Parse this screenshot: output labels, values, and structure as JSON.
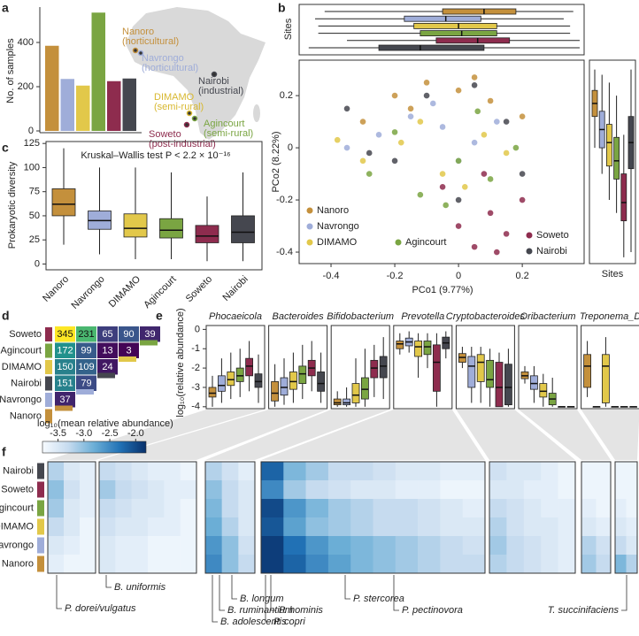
{
  "panel_labels": [
    "a",
    "b",
    "c",
    "d",
    "e",
    "f"
  ],
  "chart_data": [
    {
      "type": "bar",
      "ylabel": "No. of samples",
      "categories": [
        "Nanoro",
        "Navrongo",
        "DIMAMO",
        "Agincourt",
        "Soweto",
        "Nairobi"
      ],
      "values": [
        385,
        235,
        205,
        535,
        225,
        237
      ],
      "colors": [
        "#c4903c",
        "#9fadd9",
        "#e2c84a",
        "#7aa542",
        "#8e2c4e",
        "#45474f"
      ],
      "ylim": [
        0,
        560
      ],
      "yticks": [
        0,
        200,
        400
      ],
      "annotations": [
        {
          "name": "Nanoro",
          "note": "(horticultural)",
          "color": "#c4903c"
        },
        {
          "name": "Navrongo",
          "note": "(horticultural)",
          "color": "#9fadd9"
        },
        {
          "name": "Nairobi",
          "note": "(industrial)",
          "color": "#45474f"
        },
        {
          "name": "DIMAMO",
          "note": "(semi-rural)",
          "color": "#d8b830"
        },
        {
          "name": "Agincourt",
          "note": "(semi-rural)",
          "color": "#7aa542"
        },
        {
          "name": "Soweto",
          "note": "(post-industrial)",
          "color": "#8e2c4e"
        }
      ]
    },
    {
      "type": "scatter",
      "xlabel": "PCo1 (9.77%)",
      "ylabel": "PCo2 (8.22%)",
      "marginal_label": "Sites",
      "xlim": [
        -0.5,
        0.394
      ],
      "ylim": [
        -0.444,
        0.336
      ],
      "xticks": [
        -0.4,
        -0.2,
        0,
        0.2
      ],
      "yticks": [
        -0.4,
        -0.2,
        0,
        0.2
      ],
      "series": [
        {
          "name": "Nanoro",
          "color": "#c4903c",
          "x": [
            -0.3,
            -0.2,
            -0.1,
            0,
            0.1,
            0.2,
            0.05,
            -0.15
          ],
          "y": [
            0.1,
            0.2,
            0.25,
            0.22,
            0.18,
            0.12,
            0.27,
            0.15
          ]
        },
        {
          "name": "Navrongo",
          "color": "#9fadd9",
          "x": [
            -0.25,
            -0.15,
            -0.05,
            0.05,
            -0.35,
            0.12,
            -0.08,
            0.0
          ],
          "y": [
            0.05,
            0.12,
            0.08,
            0.02,
            0.0,
            0.1,
            0.17,
            -0.05
          ]
        },
        {
          "name": "DIMAMO",
          "color": "#e2c84a",
          "x": [
            -0.3,
            -0.18,
            -0.05,
            0.08,
            0.15,
            -0.38,
            0.02,
            -0.12
          ],
          "y": [
            -0.05,
            0.02,
            -0.1,
            0.05,
            -0.02,
            0.03,
            -0.15,
            0.1
          ]
        },
        {
          "name": "Agincourt",
          "color": "#7aa542",
          "x": [
            -0.28,
            -0.12,
            0.0,
            0.1,
            0.18,
            -0.2,
            -0.04,
            0.06
          ],
          "y": [
            -0.1,
            -0.18,
            -0.05,
            -0.12,
            0.0,
            0.06,
            -0.22,
            0.14
          ]
        },
        {
          "name": "Soweto",
          "color": "#8e2c4e",
          "x": [
            0.0,
            0.05,
            0.1,
            0.15,
            0.2,
            -0.05,
            0.08,
            0.12
          ],
          "y": [
            -0.3,
            -0.38,
            -0.25,
            -0.33,
            -0.2,
            -0.15,
            -0.1,
            -0.4
          ]
        },
        {
          "name": "Nairobi",
          "color": "#45474f",
          "x": [
            -0.35,
            -0.2,
            -0.1,
            0.0,
            0.15,
            0.2,
            -0.28,
            0.05
          ],
          "y": [
            0.15,
            -0.05,
            0.2,
            -0.2,
            0.1,
            -0.1,
            -0.02,
            0.24
          ]
        }
      ],
      "top_boxes": [
        [
          -0.42,
          -0.05,
          0.08,
          0.18,
          0.36
        ],
        [
          -0.45,
          -0.17,
          -0.04,
          0.07,
          0.33
        ],
        [
          -0.44,
          -0.14,
          0.0,
          0.12,
          0.35
        ],
        [
          -0.44,
          -0.12,
          0.01,
          0.12,
          0.35
        ],
        [
          -0.35,
          -0.07,
          0.06,
          0.16,
          0.38
        ],
        [
          -0.47,
          -0.25,
          -0.12,
          0.08,
          0.38
        ]
      ],
      "right_boxes": [
        [
          0,
          0.12,
          0.17,
          0.22,
          0.3
        ],
        [
          -0.1,
          0.0,
          0.07,
          0.14,
          0.28
        ],
        [
          -0.2,
          -0.07,
          0.02,
          0.09,
          0.25
        ],
        [
          -0.25,
          -0.12,
          -0.05,
          0.04,
          0.2
        ],
        [
          -0.42,
          -0.28,
          -0.21,
          -0.1,
          0.05
        ],
        [
          -0.4,
          -0.08,
          0.02,
          0.12,
          0.3
        ]
      ]
    },
    {
      "type": "box",
      "ylabel": "Prokaryotic diversity",
      "annotation": "Kruskal–Wallis test P < 2.2 × 10⁻¹⁶",
      "categories": [
        "Nanoro",
        "Navrongo",
        "DIMAMO",
        "Agincourt",
        "Soweto",
        "Nairobi"
      ],
      "colors": [
        "#c4903c",
        "#9fadd9",
        "#e2c84a",
        "#7aa542",
        "#8e2c4e",
        "#45474f"
      ],
      "boxes": [
        [
          20,
          50,
          62,
          78,
          120
        ],
        [
          10,
          36,
          45,
          55,
          100
        ],
        [
          5,
          28,
          37,
          52,
          100
        ],
        [
          5,
          27,
          35,
          47,
          95
        ],
        [
          3,
          22,
          29,
          40,
          70
        ],
        [
          3,
          22,
          33,
          50,
          95
        ]
      ],
      "ylim": [
        -6,
        127
      ],
      "yticks": [
        0,
        25,
        50,
        75,
        100,
        125
      ]
    },
    {
      "type": "matrix",
      "rows": [
        "Soweto",
        "Agincourt",
        "DIMAMO",
        "Nairobi",
        "Navrongo",
        "Nanoro"
      ],
      "row_colors": [
        "#8e2c4e",
        "#7aa542",
        "#e2c84a",
        "#45474f",
        "#9fadd9",
        "#c4903c"
      ],
      "values": [
        [
          345,
          231,
          65,
          90,
          39
        ],
        [
          172,
          99,
          13,
          3
        ],
        [
          150,
          109,
          24
        ],
        [
          151,
          79
        ],
        [
          37
        ],
        []
      ],
      "colorscale": [
        "#440154",
        "#3b528b",
        "#21918c",
        "#5ec962",
        "#fde725"
      ]
    },
    {
      "type": "box-grid",
      "ylabel": "log₁₀(relative abundance)",
      "colors": [
        "#c4903c",
        "#9fadd9",
        "#e2c84a",
        "#7aa542",
        "#8e2c4e",
        "#45474f"
      ],
      "ylim": [
        -4.1,
        0.2
      ],
      "yticks": [
        0,
        -1,
        -2,
        -3,
        -4
      ],
      "panels": [
        {
          "title": "Phocaeicola",
          "boxes": [
            [
              -4,
              -3.5,
              -3.3,
              -3.0,
              -2.4
            ],
            [
              -3.8,
              -3.2,
              -2.9,
              -2.4,
              -1.5
            ],
            [
              -3.6,
              -2.9,
              -2.6,
              -2.2,
              -1.2
            ],
            [
              -3.5,
              -2.7,
              -2.4,
              -2.0,
              -1.0
            ],
            [
              -3.2,
              -2.4,
              -1.9,
              -1.5,
              -0.6
            ],
            [
              -3.8,
              -3.0,
              -2.7,
              -2.3,
              -1.3
            ]
          ]
        },
        {
          "title": "Bacteroides",
          "boxes": [
            [
              -4,
              -3.7,
              -3.3,
              -2.7,
              -1.8
            ],
            [
              -3.9,
              -3.4,
              -3.0,
              -2.5,
              -1.5
            ],
            [
              -3.8,
              -3.1,
              -2.7,
              -2.2,
              -1.2
            ],
            [
              -3.6,
              -2.8,
              -2.3,
              -1.9,
              -0.8
            ],
            [
              -3.2,
              -2.4,
              -2.0,
              -1.6,
              -0.6
            ],
            [
              -3.8,
              -3.2,
              -2.8,
              -2.2,
              -1.2
            ]
          ]
        },
        {
          "title": "Bifidobacterium",
          "boxes": [
            [
              -4,
              -3.9,
              -3.8,
              -3.6,
              -3.2
            ],
            [
              -4,
              -3.9,
              -3.8,
              -3.6,
              -3.0
            ],
            [
              -4,
              -3.8,
              -3.4,
              -2.8,
              -1.5
            ],
            [
              -4,
              -3.6,
              -3.1,
              -2.5,
              -1.0
            ],
            [
              -3.5,
              -2.5,
              -2.0,
              -1.6,
              -0.8
            ],
            [
              -3.6,
              -2.5,
              -1.9,
              -1.4,
              -0.4
            ]
          ]
        },
        {
          "title": "Prevotella",
          "boxes": [
            [
              -1.3,
              -1.0,
              -0.75,
              -0.6,
              -0.2
            ],
            [
              -1.2,
              -0.85,
              -0.65,
              -0.45,
              -0.1
            ],
            [
              -2.5,
              -1.4,
              -0.9,
              -0.6,
              -0.2
            ],
            [
              -2.0,
              -1.3,
              -0.9,
              -0.6,
              -0.2
            ],
            [
              -4,
              -3.2,
              -1.7,
              -0.8,
              -0.2
            ],
            [
              -1.5,
              -1.0,
              -0.7,
              -0.4,
              -0.1
            ]
          ]
        },
        {
          "title": "Cryptobacteroides",
          "boxes": [
            [
              -2.0,
              -1.7,
              -1.45,
              -1.25,
              -0.9
            ],
            [
              -3.8,
              -3.0,
              -1.9,
              -1.4,
              -0.9
            ],
            [
              -3.8,
              -2.7,
              -1.7,
              -1.3,
              -0.9
            ],
            [
              -4,
              -3.0,
              -2.6,
              -1.6,
              -1.0
            ],
            [
              -4,
              -4,
              -3.0,
              -1.7,
              -1.2
            ],
            [
              -4,
              -3.9,
              -3.0,
              -1.8,
              -1.0
            ]
          ]
        },
        {
          "title": "Oribacterium",
          "boxes": [
            [
              -2.8,
              -2.55,
              -2.4,
              -2.2,
              -1.9
            ],
            [
              -3.8,
              -3.1,
              -2.8,
              -2.4,
              -1.9
            ],
            [
              -4,
              -3.5,
              -3.2,
              -2.8,
              -2.3
            ],
            [
              -4,
              -3.9,
              -3.6,
              -3.3,
              -2.5
            ],
            [
              -4,
              -4,
              -4,
              -4,
              -4
            ],
            [
              -4,
              -4,
              -4,
              -4,
              -4
            ]
          ]
        },
        {
          "title": "Treponema_D",
          "boxes": [
            [
              -3.5,
              -3.0,
              -1.9,
              -1.3,
              -0.6
            ],
            [
              -4,
              -4,
              -4,
              -4,
              -4
            ],
            [
              -4,
              -3.8,
              -1.9,
              -1.3,
              -0.4
            ],
            [
              -4,
              -4,
              -4,
              -4,
              -4
            ],
            [
              -4,
              -4,
              -4,
              -4,
              -4
            ],
            [
              -4,
              -4,
              -4,
              -4,
              -4
            ]
          ]
        }
      ]
    },
    {
      "type": "heatmap",
      "rows": [
        "Nairobi",
        "Soweto",
        "Agincourt",
        "DIMAMO",
        "Navrongo",
        "Nanoro"
      ],
      "row_colors": [
        "#45474f",
        "#8e2c4e",
        "#7aa542",
        "#e2c84a",
        "#9fadd9",
        "#c4903c"
      ],
      "colorbar_label": "log₁₀(mean relative abundance)",
      "clim": [
        -3.8,
        -1.8
      ],
      "cticks": [
        -3.5,
        {
          "value": -3,
          "label": "-3.0"
        },
        -2.5,
        {
          "value": -2,
          "label": "-2.0"
        }
      ],
      "colorscale": [
        "#f7fbff",
        "#c6dbef",
        "#6baed6",
        "#2171b5",
        "#08306b"
      ],
      "blocks": [
        [
          [
            -3.2,
            -3.5,
            -3.6
          ],
          [
            -3.0,
            -3.4,
            -3.6
          ],
          [
            -3.1,
            -3.5,
            -3.6
          ],
          [
            -3.3,
            -3.5,
            -3.7
          ],
          [
            -3.5,
            -3.6,
            -3.7
          ],
          [
            -3.6,
            -3.7,
            -3.7
          ]
        ],
        [
          [
            -3.3,
            -3.4,
            -3.5,
            -3.6,
            -3.6,
            -3.7
          ],
          [
            -3.1,
            -3.3,
            -3.4,
            -3.5,
            -3.6,
            -3.6
          ],
          [
            -3.3,
            -3.4,
            -3.5,
            -3.5,
            -3.6,
            -3.7
          ],
          [
            -3.4,
            -3.5,
            -3.5,
            -3.6,
            -3.6,
            -3.7
          ],
          [
            -3.5,
            -3.6,
            -3.6,
            -3.7,
            -3.7,
            -3.7
          ],
          [
            -3.5,
            -3.6,
            -3.6,
            -3.7,
            -3.7,
            -3.7
          ]
        ],
        [
          [
            -3.2,
            -3.4,
            -3.6
          ],
          [
            -3.0,
            -3.3,
            -3.5
          ],
          [
            -2.9,
            -3.3,
            -3.5
          ],
          [
            -2.8,
            -3.2,
            -3.5
          ],
          [
            -2.6,
            -3.0,
            -3.4
          ],
          [
            -2.5,
            -3.0,
            -3.3
          ]
        ],
        [
          [
            -2.2,
            -2.9,
            -3.1,
            -3.3,
            -3.3,
            -3.4,
            -3.5,
            -3.5,
            -3.6,
            -3.6
          ],
          [
            -2.5,
            -3.1,
            -3.3,
            -3.4,
            -3.5,
            -3.5,
            -3.6,
            -3.6,
            -3.7,
            -3.7
          ],
          [
            -2.0,
            -2.6,
            -2.9,
            -3.1,
            -3.2,
            -3.3,
            -3.3,
            -3.4,
            -3.5,
            -3.6
          ],
          [
            -2.1,
            -2.7,
            -3.0,
            -3.1,
            -3.2,
            -3.3,
            -3.3,
            -3.4,
            -3.5,
            -3.5
          ],
          [
            -1.9,
            -2.3,
            -2.6,
            -2.8,
            -2.9,
            -3.0,
            -3.1,
            -3.2,
            -3.3,
            -3.4
          ],
          [
            -1.9,
            -2.2,
            -2.5,
            -2.7,
            -2.9,
            -3.0,
            -3.1,
            -3.2,
            -3.3,
            -3.3
          ]
        ],
        [
          [
            -3.4,
            -3.5,
            -3.5,
            -3.6,
            -3.7
          ],
          [
            -3.5,
            -3.5,
            -3.6,
            -3.6,
            -3.7
          ],
          [
            -3.3,
            -3.4,
            -3.5,
            -3.6,
            -3.6
          ],
          [
            -3.2,
            -3.4,
            -3.5,
            -3.5,
            -3.6
          ],
          [
            -3.1,
            -3.3,
            -3.4,
            -3.5,
            -3.6
          ],
          [
            -3.2,
            -3.3,
            -3.4,
            -3.5,
            -3.6
          ]
        ],
        [
          [
            -3.7,
            -3.7
          ],
          [
            -3.7,
            -3.7
          ],
          [
            -3.6,
            -3.7
          ],
          [
            -3.5,
            -3.6
          ],
          [
            -3.2,
            -3.4
          ],
          [
            -3.1,
            -3.3
          ]
        ],
        [
          [
            -3.7,
            -3.7
          ],
          [
            -3.7,
            -3.7
          ],
          [
            -3.6,
            -3.7
          ],
          [
            -3.5,
            -3.6
          ],
          [
            -3.3,
            -3.5
          ],
          [
            -2.9,
            -3.2
          ]
        ]
      ],
      "species_labels": [
        "P. dorei/vulgatus",
        "B. uniformis",
        "B. adolescentis",
        "B. ruminantium",
        "B. longum",
        "P. copri",
        "P. hominis",
        "P. stercorea",
        "P. pectinovora",
        "T. succinifaciens"
      ]
    }
  ]
}
